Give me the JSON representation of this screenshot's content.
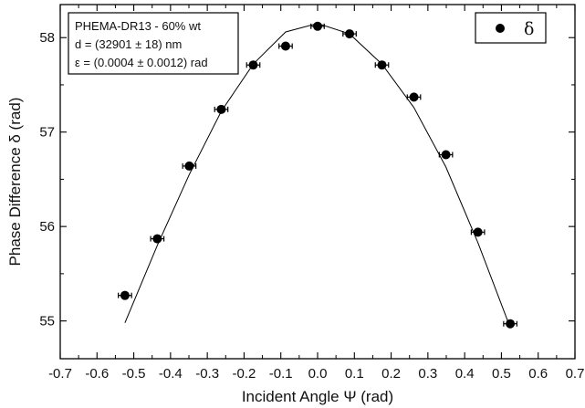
{
  "chart_data": {
    "type": "scatter",
    "xlabel": "Incident Angle Ψ (rad)",
    "ylabel": "Phase Difference δ (rad)",
    "xlim": [
      -0.7,
      0.7
    ],
    "ylim": [
      54.6,
      58.35
    ],
    "x_ticks": [
      "-0.7",
      "-0.6",
      "-0.5",
      "-0.4",
      "-0.3",
      "-0.2",
      "-0.1",
      "0.0",
      "0.1",
      "0.2",
      "0.3",
      "0.4",
      "0.5",
      "0.6",
      "0.7"
    ],
    "x_tick_values": [
      -0.7,
      -0.6,
      -0.5,
      -0.4,
      -0.3,
      -0.2,
      -0.1,
      0.0,
      0.1,
      0.2,
      0.3,
      0.4,
      0.5,
      0.6,
      0.7
    ],
    "y_ticks": [
      "55",
      "56",
      "57",
      "58"
    ],
    "y_tick_values": [
      55,
      56,
      57,
      58
    ],
    "grid": false,
    "legend": {
      "position": "top-right",
      "label": "δ"
    },
    "info_box": [
      "PHEMA-DR13 - 60% wt",
      "d = (32901 ± 18) nm",
      "ε = (0.0004 ± 0.0012) rad"
    ],
    "series": [
      {
        "name": "δ",
        "kind": "points_with_error_bars",
        "x": [
          -0.524,
          -0.436,
          -0.349,
          -0.262,
          -0.175,
          -0.087,
          0.0,
          0.087,
          0.175,
          0.262,
          0.349,
          0.436,
          0.524
        ],
        "y": [
          55.27,
          55.87,
          56.64,
          57.24,
          57.71,
          57.91,
          58.12,
          58.04,
          57.71,
          57.37,
          56.76,
          55.94,
          54.97
        ],
        "x_error": [
          0.018,
          0.018,
          0.018,
          0.018,
          0.018,
          0.018,
          0.018,
          0.018,
          0.018,
          0.018,
          0.018,
          0.018,
          0.018
        ]
      },
      {
        "kind": "fit_line",
        "x": [
          -0.524,
          -0.436,
          -0.349,
          -0.262,
          -0.175,
          -0.087,
          0.0,
          0.087,
          0.175,
          0.262,
          0.349,
          0.436,
          0.524
        ],
        "y": [
          54.98,
          55.8,
          56.55,
          57.22,
          57.72,
          58.06,
          58.15,
          58.04,
          57.72,
          57.26,
          56.63,
          55.83,
          54.93
        ]
      }
    ]
  }
}
